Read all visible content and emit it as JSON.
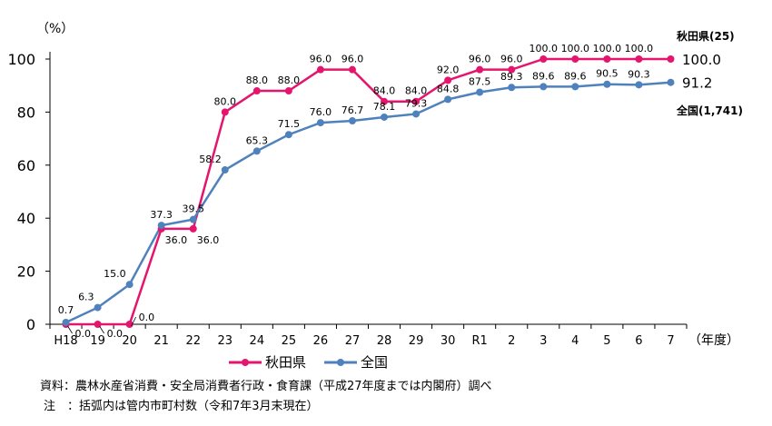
{
  "chart_data": {
    "type": "line",
    "ylabel": "（%）",
    "xlabel": "（年度）",
    "ylim": [
      0,
      100
    ],
    "yticks": [
      0,
      20,
      40,
      60,
      80,
      100
    ],
    "grid": false,
    "categories": [
      "H18",
      "19",
      "20",
      "21",
      "22",
      "23",
      "24",
      "25",
      "26",
      "27",
      "28",
      "29",
      "30",
      "R1",
      "2",
      "3",
      "4",
      "5",
      "6",
      "7"
    ],
    "series": [
      {
        "name": "秋田県",
        "color": "#E5156E",
        "end_label": "秋田県(25)",
        "end_value": "100.0",
        "values": [
          0,
          0,
          0,
          36,
          36,
          80,
          88,
          88,
          96,
          96,
          84,
          84,
          92,
          96,
          96,
          100,
          100,
          100,
          100,
          100
        ]
      },
      {
        "name": "全国",
        "color": "#4F81BD",
        "end_label": "全国(1,741)",
        "end_value": "91.2",
        "values": [
          0.7,
          6.3,
          15.0,
          37.3,
          39.5,
          58.2,
          65.3,
          71.5,
          76.0,
          76.7,
          78.1,
          79.3,
          84.8,
          87.5,
          89.3,
          89.6,
          89.6,
          90.5,
          90.3,
          91.2
        ]
      }
    ],
    "legend_position": "bottom"
  },
  "notes": {
    "source": "資料：農林水産省消費・安全局消費者行政・食育課（平成27年度までは内閣府）調べ",
    "note": "注　：括弧内は管内市町村数（令和7年3月末現在）"
  }
}
